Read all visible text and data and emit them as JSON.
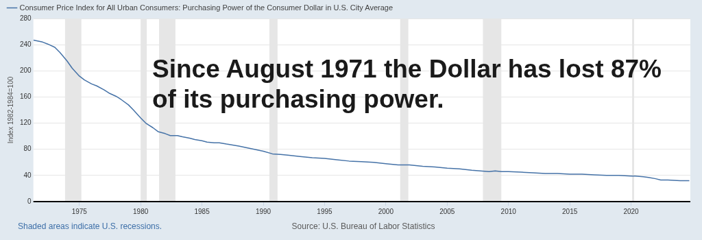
{
  "chart_data": {
    "type": "line",
    "ylabel": "Index 1982-1984=100",
    "x": [
      "1971-04",
      "1972-01",
      "1972-06",
      "1973-01",
      "1973-06",
      "1974-01",
      "1974-06",
      "1975-01",
      "1975-06",
      "1976-01",
      "1976-06",
      "1977-01",
      "1977-06",
      "1978-01",
      "1978-06",
      "1979-01",
      "1979-06",
      "1980-01",
      "1980-06",
      "1981-01",
      "1981-06",
      "1982-01",
      "1982-06",
      "1983-01",
      "1983-06",
      "1984-01",
      "1984-06",
      "1985-01",
      "1985-06",
      "1986-01",
      "1986-06",
      "1987-01",
      "1988-01",
      "1989-01",
      "1990-01",
      "1990-10",
      "1991-06",
      "1992-01",
      "1993-01",
      "1994-01",
      "1995-01",
      "1996-01",
      "1997-01",
      "1998-01",
      "1999-01",
      "2000-01",
      "2001-01",
      "2001-12",
      "2003-01",
      "2004-01",
      "2005-01",
      "2006-01",
      "2007-01",
      "2008-06",
      "2008-12",
      "2009-06",
      "2010-01",
      "2011-01",
      "2012-01",
      "2013-01",
      "2014-01",
      "2015-01",
      "2016-01",
      "2017-01",
      "2018-01",
      "2019-01",
      "2020-01",
      "2020-05",
      "2021-01",
      "2021-06",
      "2022-01",
      "2022-06",
      "2023-01",
      "2024-01",
      "2024-10"
    ],
    "series": [
      {
        "name": "Consumer Price Index for All Urban Consumers: Purchasing Power of the Consumer Dollar in U.S. City Average",
        "color": "#4572a7",
        "values": [
          247,
          244,
          241,
          236,
          228,
          215,
          204,
          192,
          186,
          180,
          177,
          171,
          166,
          161,
          156,
          148,
          140,
          128,
          120,
          113,
          107,
          104,
          101,
          101,
          99,
          97,
          95,
          93,
          91,
          90,
          90,
          88,
          85,
          81,
          77,
          73,
          72,
          71,
          69,
          67,
          66,
          64,
          62,
          61,
          60,
          58,
          56,
          56,
          54,
          53,
          51,
          50,
          48,
          46,
          47,
          46,
          46,
          45,
          44,
          43,
          43,
          42,
          42,
          41,
          40,
          40,
          39,
          39,
          38,
          37,
          35,
          33,
          33,
          32,
          32
        ]
      }
    ],
    "xlim": [
      "1971-04",
      "2024-11"
    ],
    "xticks": [
      "1975",
      "1980",
      "1985",
      "1990",
      "1995",
      "2000",
      "2005",
      "2010",
      "2015",
      "2020"
    ],
    "ylim": [
      0,
      280
    ],
    "yticks": [
      0,
      40,
      80,
      120,
      160,
      200,
      240,
      280
    ],
    "grid": "y",
    "legend": "top left",
    "marker": "none",
    "line_style": "solid",
    "bands": [
      {
        "axis": "x",
        "from": "1973-11",
        "to": "1975-03",
        "color": "#e6e6e6"
      },
      {
        "axis": "x",
        "from": "1980-01",
        "to": "1980-07",
        "color": "#e6e6e6"
      },
      {
        "axis": "x",
        "from": "1981-07",
        "to": "1982-11",
        "color": "#e6e6e6"
      },
      {
        "axis": "x",
        "from": "1990-07",
        "to": "1991-03",
        "color": "#e6e6e6"
      },
      {
        "axis": "x",
        "from": "2001-03",
        "to": "2001-11",
        "color": "#e6e6e6"
      },
      {
        "axis": "x",
        "from": "2007-12",
        "to": "2009-06",
        "color": "#e6e6e6"
      },
      {
        "axis": "x",
        "from": "2020-02",
        "to": "2020-04",
        "color": "#e6e6e6"
      }
    ],
    "annotations": [
      "Since August 1971 the Dollar has lost 87% of its purchasing power.",
      "Shaded areas indicate U.S. recessions.",
      "Source: U.S. Bureau of Labor Statistics"
    ]
  }
}
